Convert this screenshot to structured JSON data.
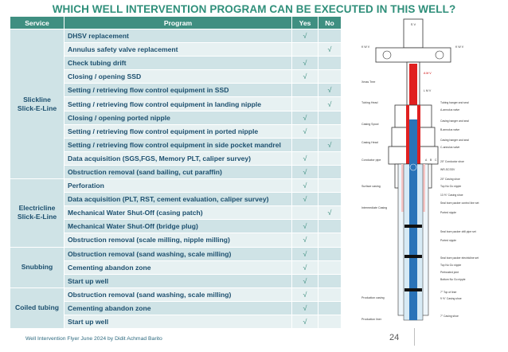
{
  "title": "WHICH WELL INTERVENTION PROGRAM CAN BE EXECUTED IN THIS WELL?",
  "table": {
    "headers": {
      "service": "Service",
      "program": "Program",
      "yes": "Yes",
      "no": "No"
    },
    "groups": [
      {
        "service": "Slickline Slick-E-Line",
        "rows": [
          {
            "program": "DHSV replacement",
            "yes": "√",
            "no": ""
          },
          {
            "program": "Annulus safety valve replacement",
            "yes": "",
            "no": "√"
          },
          {
            "program": "Check tubing drift",
            "yes": "√",
            "no": ""
          },
          {
            "program": "Closing / opening SSD",
            "yes": "√",
            "no": ""
          },
          {
            "program": "Setting / retrieving flow control equipment in SSD",
            "yes": "",
            "no": "√"
          },
          {
            "program": "Setting / retrieving flow control equipment in landing nipple",
            "yes": "",
            "no": "√"
          },
          {
            "program": "Closing / opening ported nipple",
            "yes": "√",
            "no": ""
          },
          {
            "program": "Setting / retrieving flow control equipment in ported nipple",
            "yes": "√",
            "no": ""
          },
          {
            "program": "Setting / retrieving flow control equipment in side pocket mandrel",
            "yes": "",
            "no": "√"
          },
          {
            "program": "Data acquisition (SGS,FGS, Memory PLT, caliper survey)",
            "yes": "√",
            "no": ""
          },
          {
            "program": "Obstruction removal (sand bailing, cut paraffin)",
            "yes": "√",
            "no": ""
          }
        ]
      },
      {
        "service": "Electricline Slick-E-Line",
        "rows": [
          {
            "program": "Perforation",
            "yes": "√",
            "no": ""
          },
          {
            "program": "Data acquisition (PLT, RST, cement evaluation, caliper survey)",
            "yes": "√",
            "no": ""
          },
          {
            "program": "Mechanical Water Shut-Off (casing patch)",
            "yes": "",
            "no": "√"
          },
          {
            "program": "Mechanical Water Shut-Off (bridge plug)",
            "yes": "√",
            "no": ""
          },
          {
            "program": "Obstruction removal (scale milling, nipple milling)",
            "yes": "√",
            "no": ""
          }
        ]
      },
      {
        "service": "Snubbing",
        "rows": [
          {
            "program": "Obstruction removal (sand washing, scale milling)",
            "yes": "√",
            "no": ""
          },
          {
            "program": "Cementing abandon zone",
            "yes": "√",
            "no": ""
          },
          {
            "program": "Start up well",
            "yes": "√",
            "no": ""
          }
        ]
      },
      {
        "service": "Coiled tubing",
        "rows": [
          {
            "program": "Obstruction removal (sand washing, scale milling)",
            "yes": "√",
            "no": ""
          },
          {
            "program": "Cementing abandon zone",
            "yes": "√",
            "no": ""
          },
          {
            "program": "Start up well",
            "yes": "√",
            "no": ""
          }
        ]
      }
    ]
  },
  "diagram": {
    "sv": "S V",
    "kwv_left": "K W V",
    "kwv_right": "K W V",
    "amv": "A M V",
    "lmv": "L M V",
    "xmas": "Xmas Tree",
    "left_labels": [
      "Tubing Head",
      "Casing Spool",
      "Casing Head",
      "Conductor pipe",
      "Surface casing",
      "Intermediate Casing",
      "Production casing",
      "Production liner"
    ],
    "right_labels": [
      "Tubing hanger and seal",
      "A-annulus valve",
      "Casing hanger and seal",
      "B-annulus valve",
      "Casing hanger and seal",
      "C-annulus valve",
      "20\" Conductor shoe",
      "WR-SCSSV",
      "20\" Casing shoe",
      "Top No Go nipple",
      "13 ⅝\" Casing shoe",
      "Seal bore packer control line set",
      "Ported nipple",
      "Seal bore packer drill pipe set",
      "Ported nipple",
      "Seal bore packer electricline set",
      "Top No Go nipple",
      "Perforated joint",
      "Bottom No Go nipple",
      "7\" Top of liner",
      "9 ⅝\" Casing shoe",
      "7\" Casing shoe"
    ],
    "abc": [
      "A",
      "B",
      "C"
    ]
  },
  "footer": "Well Intervention Flyer June 2024 by Didit Achmad Barito",
  "page_number": "24",
  "colors": {
    "header": "#3f8f81",
    "row_dark": "#cfe3e6",
    "row_light": "#e7f1f2",
    "title": "#2f8f7a",
    "text": "#1c4f6e"
  }
}
